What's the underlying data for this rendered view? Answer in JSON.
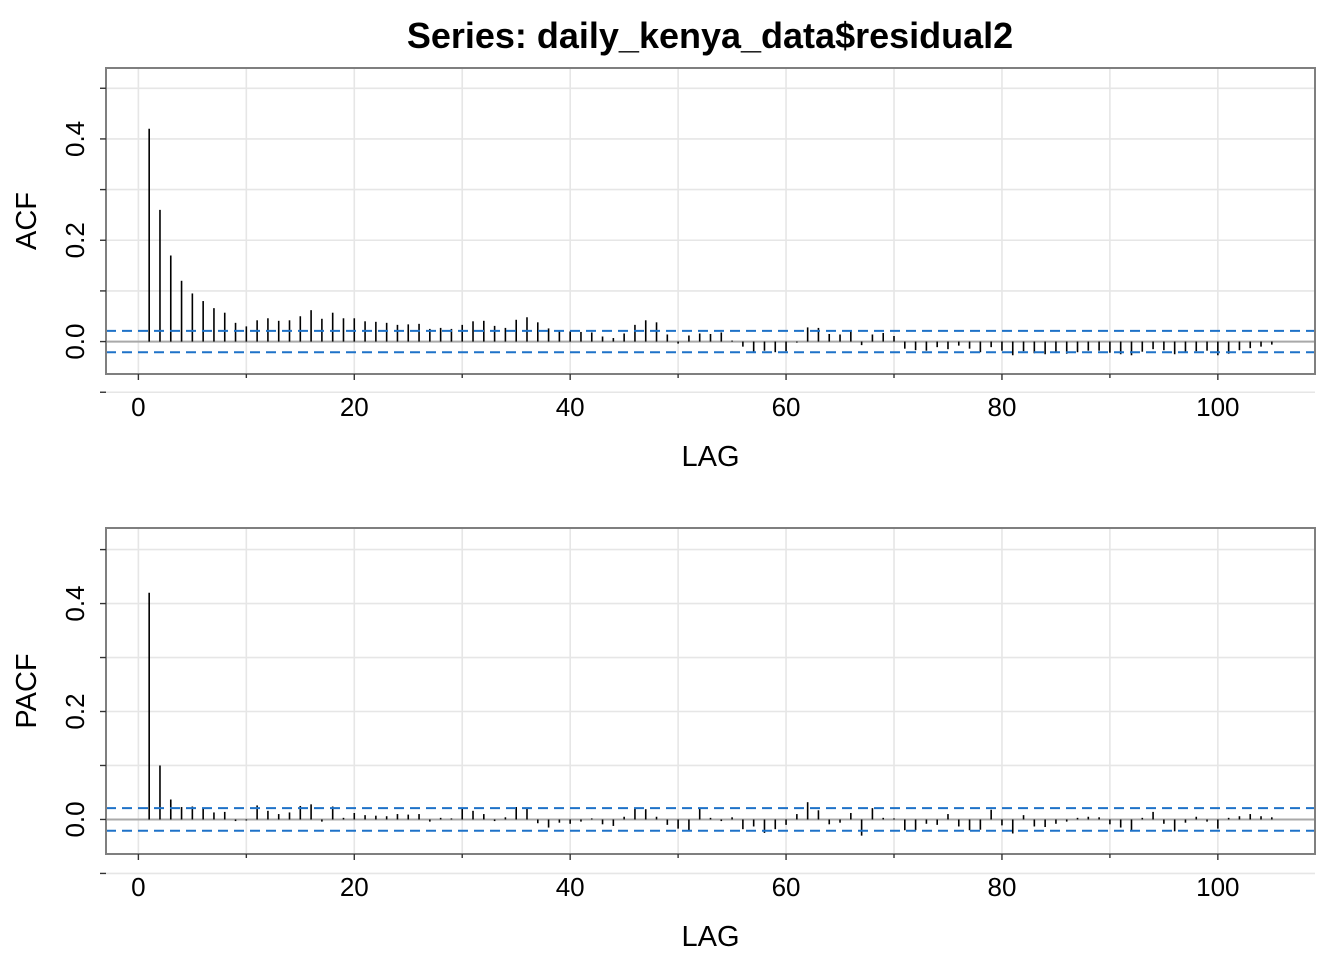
{
  "title": "Series:  daily_kenya_data$residual2",
  "colors": {
    "spike": "#000000",
    "ci_line": "#1e72c8",
    "zero_line": "#a9a9a9",
    "grid": "#e6e6e6",
    "frame": "#7f7f7f"
  },
  "chart_data": [
    {
      "type": "bar",
      "title": "Series:  daily_kenya_data$residual2",
      "xlabel": "LAG",
      "ylabel": "ACF",
      "xlim": [
        -3,
        109
      ],
      "ylim": [
        -0.064,
        0.54
      ],
      "xticks": [
        0,
        20,
        40,
        60,
        80,
        100
      ],
      "xtick_labels": [
        "0",
        "20",
        "40",
        "60",
        "80",
        "100"
      ],
      "yticks": [
        0.0,
        0.2,
        0.4
      ],
      "ytick_labels": [
        "0.0",
        "0.2",
        "0.4"
      ],
      "grid": true,
      "confidence_band": [
        -0.021,
        0.021
      ],
      "x": [
        1,
        2,
        3,
        4,
        5,
        6,
        7,
        8,
        9,
        10,
        11,
        12,
        13,
        14,
        15,
        16,
        17,
        18,
        19,
        20,
        21,
        22,
        23,
        24,
        25,
        26,
        27,
        28,
        29,
        30,
        31,
        32,
        33,
        34,
        35,
        36,
        37,
        38,
        39,
        40,
        41,
        42,
        43,
        44,
        45,
        46,
        47,
        48,
        49,
        50,
        51,
        52,
        53,
        54,
        55,
        56,
        57,
        58,
        59,
        60,
        61,
        62,
        63,
        64,
        65,
        66,
        67,
        68,
        69,
        70,
        71,
        72,
        73,
        74,
        75,
        76,
        77,
        78,
        79,
        80,
        81,
        82,
        83,
        84,
        85,
        86,
        87,
        88,
        89,
        90,
        91,
        92,
        93,
        94,
        95,
        96,
        97,
        98,
        99,
        100,
        101,
        102,
        103,
        104,
        105
      ],
      "values": [
        0.42,
        0.26,
        0.17,
        0.12,
        0.095,
        0.08,
        0.066,
        0.057,
        0.037,
        0.03,
        0.042,
        0.046,
        0.041,
        0.042,
        0.05,
        0.062,
        0.045,
        0.057,
        0.046,
        0.046,
        0.04,
        0.039,
        0.037,
        0.033,
        0.034,
        0.035,
        0.025,
        0.027,
        0.025,
        0.033,
        0.04,
        0.041,
        0.031,
        0.027,
        0.043,
        0.048,
        0.038,
        0.026,
        0.022,
        0.02,
        0.019,
        0.018,
        0.01,
        0.007,
        0.016,
        0.033,
        0.042,
        0.038,
        0.014,
        -0.004,
        0.012,
        0.016,
        0.015,
        0.018,
        0.002,
        -0.01,
        -0.02,
        -0.018,
        -0.021,
        -0.019,
        -0.002,
        0.028,
        0.027,
        0.015,
        0.014,
        0.022,
        -0.007,
        0.014,
        0.017,
        0.011,
        -0.014,
        -0.017,
        -0.018,
        -0.011,
        -0.015,
        -0.008,
        -0.014,
        -0.021,
        -0.011,
        -0.018,
        -0.027,
        -0.019,
        -0.023,
        -0.025,
        -0.02,
        -0.024,
        -0.021,
        -0.018,
        -0.018,
        -0.022,
        -0.025,
        -0.027,
        -0.02,
        -0.015,
        -0.017,
        -0.025,
        -0.021,
        -0.019,
        -0.018,
        -0.027,
        -0.024,
        -0.017,
        -0.013,
        -0.01,
        -0.006
      ]
    },
    {
      "type": "bar",
      "xlabel": "LAG",
      "ylabel": "PACF",
      "xlim": [
        -3,
        109
      ],
      "ylim": [
        -0.064,
        0.54
      ],
      "xticks": [
        0,
        20,
        40,
        60,
        80,
        100
      ],
      "xtick_labels": [
        "0",
        "20",
        "40",
        "60",
        "80",
        "100"
      ],
      "yticks": [
        0.0,
        0.2,
        0.4
      ],
      "ytick_labels": [
        "0.0",
        "0.2",
        "0.4"
      ],
      "grid": true,
      "confidence_band": [
        -0.021,
        0.021
      ],
      "x": [
        1,
        2,
        3,
        4,
        5,
        6,
        7,
        8,
        9,
        10,
        11,
        12,
        13,
        14,
        15,
        16,
        17,
        18,
        19,
        20,
        21,
        22,
        23,
        24,
        25,
        26,
        27,
        28,
        29,
        30,
        31,
        32,
        33,
        34,
        35,
        36,
        37,
        38,
        39,
        40,
        41,
        42,
        43,
        44,
        45,
        46,
        47,
        48,
        49,
        50,
        51,
        52,
        53,
        54,
        55,
        56,
        57,
        58,
        59,
        60,
        61,
        62,
        63,
        64,
        65,
        66,
        67,
        68,
        69,
        70,
        71,
        72,
        73,
        74,
        75,
        76,
        77,
        78,
        79,
        80,
        81,
        82,
        83,
        84,
        85,
        86,
        87,
        88,
        89,
        90,
        91,
        92,
        93,
        94,
        95,
        96,
        97,
        98,
        99,
        100,
        101,
        102,
        103,
        104,
        105
      ],
      "values": [
        0.42,
        0.1,
        0.037,
        0.023,
        0.024,
        0.02,
        0.013,
        0.014,
        -0.003,
        -0.002,
        0.026,
        0.016,
        0.01,
        0.013,
        0.025,
        0.028,
        -0.004,
        0.024,
        0.003,
        0.012,
        0.008,
        0.007,
        0.006,
        0.01,
        0.009,
        0.01,
        -0.004,
        0.003,
        0.002,
        0.02,
        0.016,
        0.01,
        -0.003,
        0.004,
        0.023,
        0.021,
        -0.007,
        -0.015,
        -0.006,
        -0.008,
        -0.004,
        0.002,
        -0.009,
        -0.012,
        0.005,
        0.022,
        0.019,
        0.005,
        -0.01,
        -0.017,
        -0.02,
        0.02,
        0.003,
        -0.003,
        0.004,
        -0.018,
        -0.013,
        -0.025,
        -0.018,
        -0.01,
        0.01,
        0.032,
        0.017,
        -0.009,
        -0.006,
        0.012,
        -0.03,
        0.021,
        0.003,
        0.002,
        -0.02,
        -0.02,
        -0.008,
        -0.01,
        0.01,
        -0.013,
        -0.02,
        -0.019,
        0.018,
        -0.011,
        -0.026,
        0.008,
        -0.013,
        -0.014,
        -0.008,
        -0.004,
        0.003,
        0.005,
        0.004,
        -0.009,
        -0.015,
        -0.022,
        0.003,
        0.014,
        -0.008,
        -0.022,
        -0.006,
        0.005,
        -0.004,
        -0.017,
        0.003,
        0.006,
        0.01,
        0.006,
        0.004
      ]
    }
  ]
}
